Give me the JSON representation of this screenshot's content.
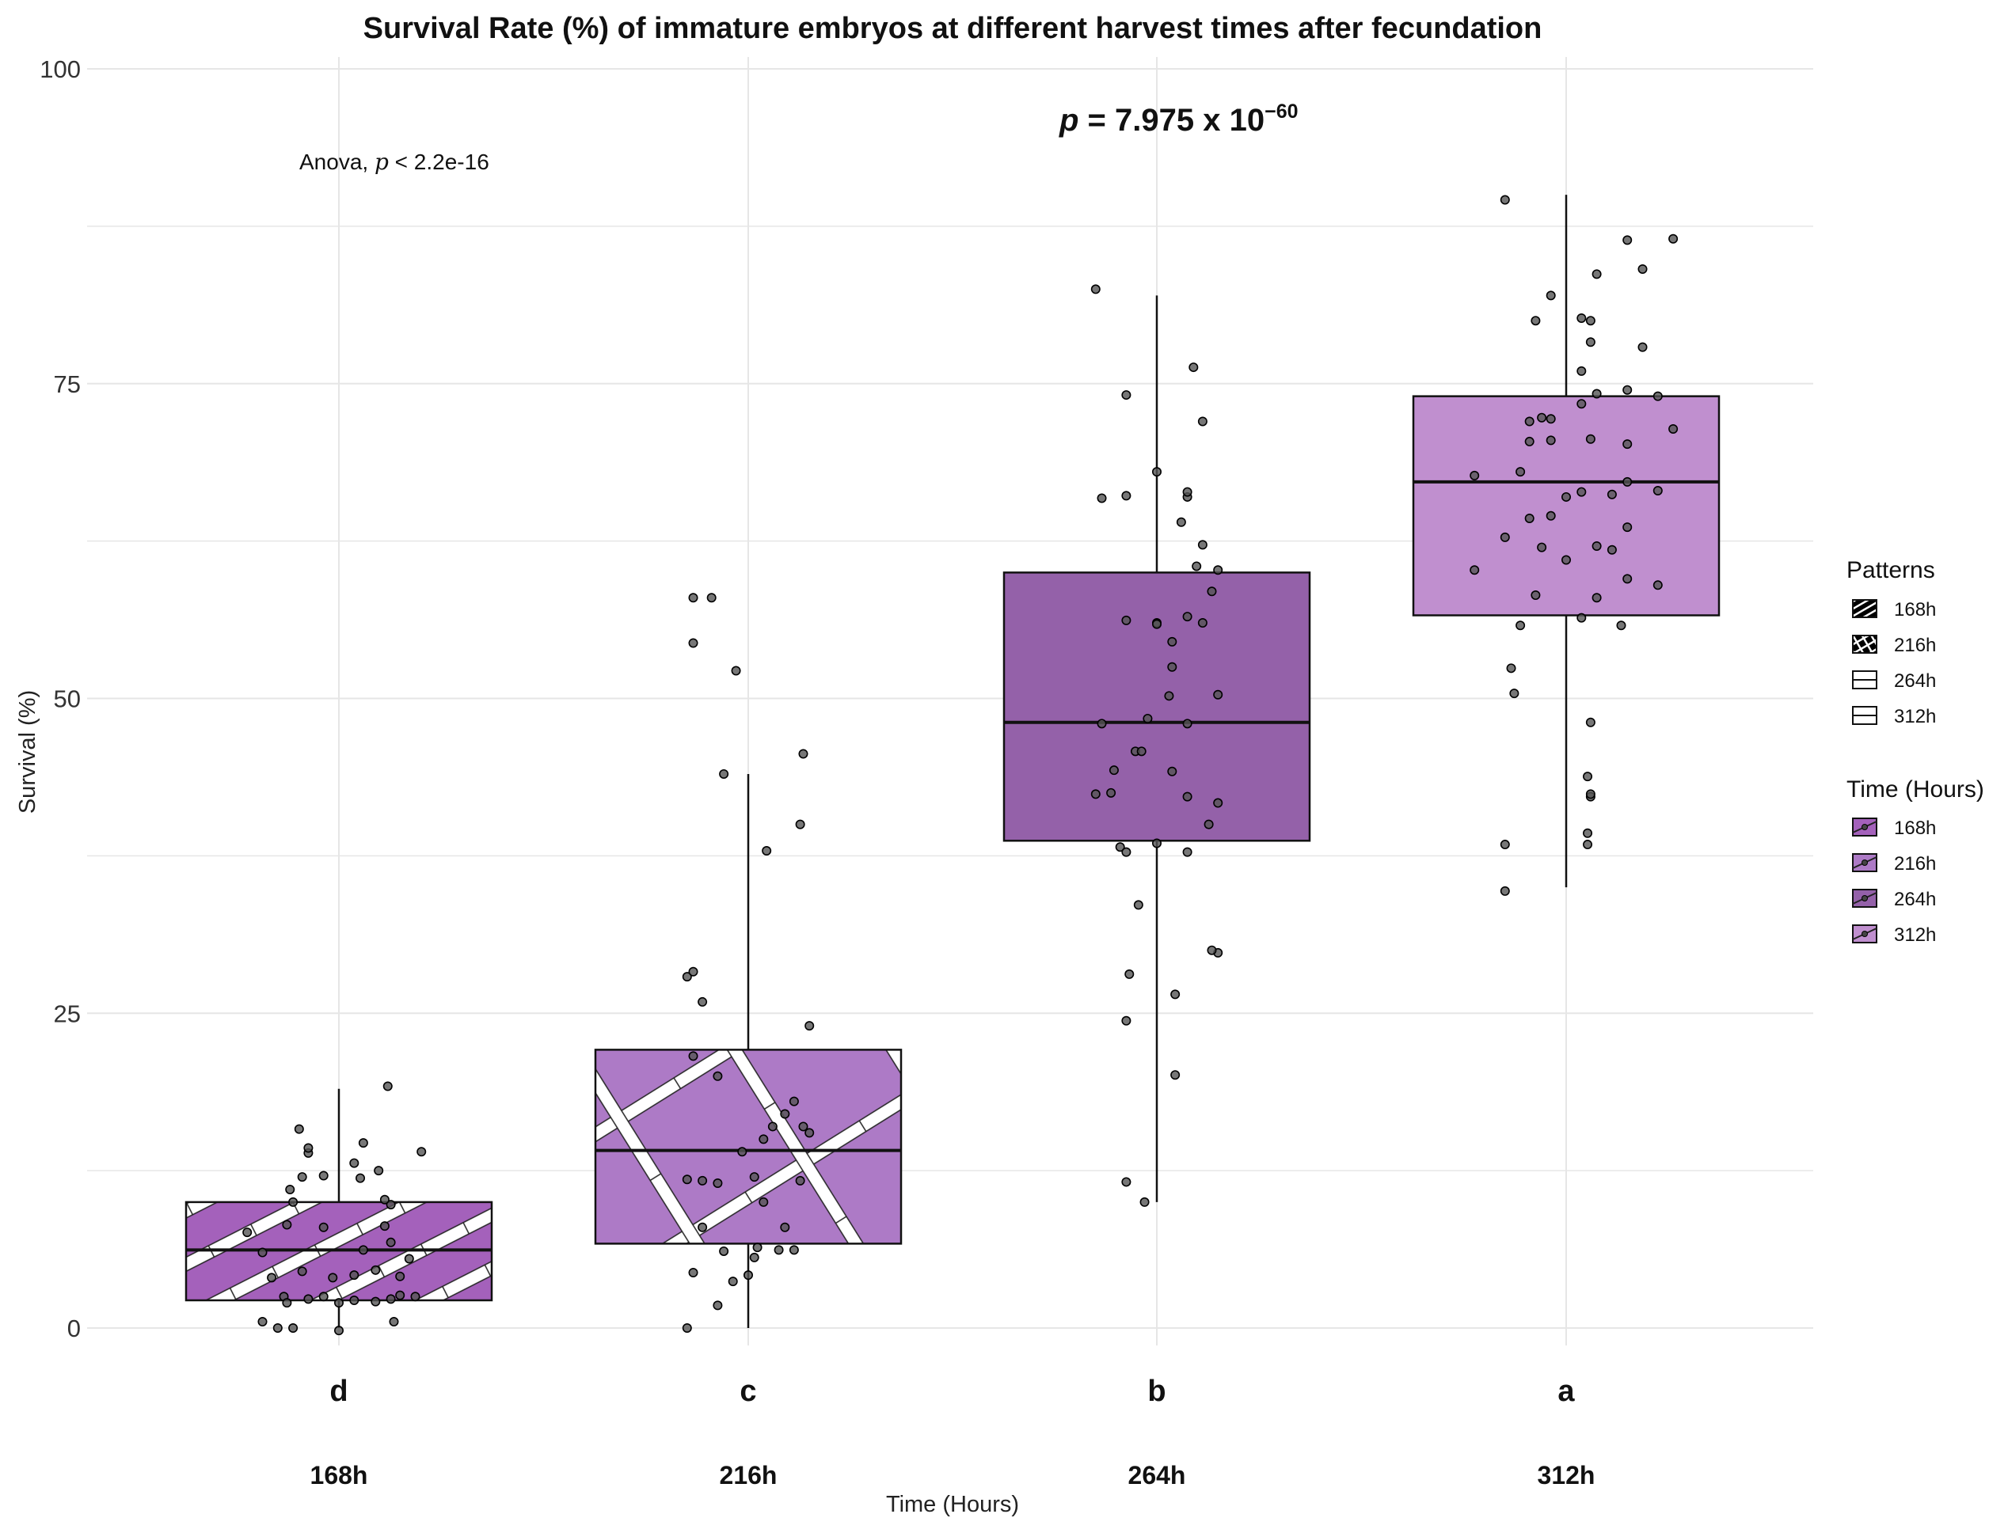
{
  "chart_data": {
    "type": "box",
    "title": "Survival Rate (%) of immature embryos at different harvest times after fecundation",
    "xlabel": "Time (Hours)",
    "ylabel": "Survival (%)",
    "ylim": [
      -5,
      100
    ],
    "yticks": [
      0,
      25,
      50,
      75,
      100
    ],
    "categories": [
      "168h",
      "216h",
      "264h",
      "312h"
    ],
    "fill_colors": [
      "#a461bb",
      "#ad7ac6",
      "#9461a9",
      "#c08fcf"
    ],
    "patterns": [
      "stripe",
      "crosshatch",
      "none",
      "none"
    ],
    "boxes": [
      {
        "category": "168h",
        "whisker_low": 0,
        "q1": 2.2,
        "median": 6.2,
        "q3": 10,
        "whisker_high": 19
      },
      {
        "category": "216h",
        "whisker_low": 0,
        "q1": 6.7,
        "median": 14.1,
        "q3": 22.1,
        "whisker_high": 44
      },
      {
        "category": "264h",
        "whisker_low": 10,
        "q1": 38.7,
        "median": 48.1,
        "q3": 60,
        "whisker_high": 82
      },
      {
        "category": "312h",
        "whisker_low": 35,
        "q1": 56.6,
        "median": 67.2,
        "q3": 74,
        "whisker_high": 90
      }
    ],
    "points": [
      [
        [
          -0.25,
          0.5
        ],
        [
          -0.2,
          0
        ],
        [
          -0.15,
          0
        ],
        [
          -0.18,
          2.5
        ],
        [
          -0.17,
          2
        ],
        [
          -0.1,
          2.3
        ],
        [
          -0.05,
          2.5
        ],
        [
          0,
          2
        ],
        [
          0.05,
          2.2
        ],
        [
          0.12,
          2.1
        ],
        [
          0.17,
          2.3
        ],
        [
          0.2,
          2.6
        ],
        [
          0.25,
          2.5
        ],
        [
          0.18,
          0.5
        ],
        [
          0,
          -0.2
        ],
        [
          -0.22,
          4
        ],
        [
          -0.12,
          4.5
        ],
        [
          -0.02,
          4
        ],
        [
          0.05,
          4.2
        ],
        [
          0.12,
          4.6
        ],
        [
          0.2,
          4.1
        ],
        [
          0.23,
          5.5
        ],
        [
          -0.25,
          6
        ],
        [
          0.08,
          6.2
        ],
        [
          0.17,
          6.8
        ],
        [
          -0.3,
          7.6
        ],
        [
          0.15,
          8.1
        ],
        [
          -0.05,
          8
        ],
        [
          -0.17,
          8.2
        ],
        [
          0.17,
          9.8
        ],
        [
          0.15,
          10.2
        ],
        [
          -0.15,
          10
        ],
        [
          -0.16,
          11
        ],
        [
          -0.12,
          12
        ],
        [
          -0.05,
          12.1
        ],
        [
          0.07,
          11.9
        ],
        [
          0.13,
          12.5
        ],
        [
          0.05,
          13.1
        ],
        [
          -0.1,
          13.9
        ],
        [
          -0.1,
          14.3
        ],
        [
          0.08,
          14.7
        ],
        [
          -0.13,
          15.8
        ],
        [
          0.16,
          19.2
        ],
        [
          0.27,
          14
        ]
      ],
      [
        [
          -0.2,
          0
        ],
        [
          -0.1,
          1.8
        ],
        [
          -0.05,
          3.7
        ],
        [
          0,
          4.2
        ],
        [
          0.02,
          5.6
        ],
        [
          0.1,
          6.2
        ],
        [
          0.15,
          6.2
        ],
        [
          -0.18,
          4.4
        ],
        [
          -0.08,
          6.1
        ],
        [
          0.03,
          6.4
        ],
        [
          -0.15,
          8
        ],
        [
          0.12,
          8
        ],
        [
          -0.2,
          11.8
        ],
        [
          -0.15,
          11.7
        ],
        [
          -0.1,
          11.5
        ],
        [
          -0.02,
          14
        ],
        [
          0.05,
          15
        ],
        [
          0.08,
          16
        ],
        [
          0.12,
          17
        ],
        [
          0.15,
          18
        ],
        [
          0.18,
          16
        ],
        [
          0.2,
          15.5
        ],
        [
          0.05,
          10
        ],
        [
          0.02,
          12
        ],
        [
          0.17,
          11.7
        ],
        [
          -0.18,
          21.6
        ],
        [
          -0.1,
          20
        ],
        [
          0.2,
          24
        ],
        [
          -0.2,
          27.9
        ],
        [
          -0.18,
          28.3
        ],
        [
          -0.15,
          25.9
        ],
        [
          0.06,
          37.9
        ],
        [
          0.17,
          40
        ],
        [
          0.18,
          45.6
        ],
        [
          -0.08,
          44
        ],
        [
          -0.04,
          52.2
        ],
        [
          -0.18,
          54.4
        ],
        [
          -0.18,
          58
        ],
        [
          -0.12,
          58
        ]
      ],
      [
        [
          -0.1,
          11.6
        ],
        [
          -0.04,
          10
        ],
        [
          -0.1,
          24.4
        ],
        [
          -0.09,
          28.1
        ],
        [
          -0.06,
          33.6
        ],
        [
          0.06,
          20.1
        ],
        [
          0.06,
          26.5
        ],
        [
          0.2,
          29.8
        ],
        [
          0.18,
          30
        ],
        [
          -0.2,
          42.4
        ],
        [
          -0.15,
          42.5
        ],
        [
          -0.12,
          38.2
        ],
        [
          -0.1,
          37.8
        ],
        [
          0,
          38.5
        ],
        [
          0.1,
          37.8
        ],
        [
          0.17,
          40
        ],
        [
          0.2,
          41.7
        ],
        [
          -0.14,
          44.3
        ],
        [
          -0.07,
          45.8
        ],
        [
          -0.05,
          45.8
        ],
        [
          0.05,
          44.2
        ],
        [
          0.1,
          42.2
        ],
        [
          -0.18,
          48
        ],
        [
          -0.03,
          48.4
        ],
        [
          0.04,
          50.2
        ],
        [
          0.1,
          48
        ],
        [
          0.2,
          50.3
        ],
        [
          0.05,
          52.5
        ],
        [
          0.05,
          54.5
        ],
        [
          -0.1,
          56.2
        ],
        [
          0,
          56
        ],
        [
          0.1,
          56.5
        ],
        [
          0.15,
          56
        ],
        [
          0.18,
          58.5
        ],
        [
          0.13,
          60.5
        ],
        [
          0.15,
          62.2
        ],
        [
          0.2,
          60.2
        ],
        [
          0,
          55.9
        ],
        [
          -0.18,
          65.9
        ],
        [
          -0.1,
          66.1
        ],
        [
          0,
          68
        ],
        [
          0.08,
          64
        ],
        [
          0.1,
          66
        ],
        [
          0.1,
          66.4
        ],
        [
          0.15,
          72
        ],
        [
          -0.1,
          74.1
        ],
        [
          0.12,
          76.3
        ],
        [
          -0.2,
          82.5
        ]
      ],
      [
        [
          -0.2,
          34.7
        ],
        [
          -0.2,
          38.4
        ],
        [
          0.07,
          39.3
        ],
        [
          0.08,
          42.2
        ],
        [
          0.08,
          42.4
        ],
        [
          0.07,
          43.8
        ],
        [
          0.08,
          48.1
        ],
        [
          0.07,
          38.4
        ],
        [
          -0.17,
          50.4
        ],
        [
          -0.18,
          52.4
        ],
        [
          -0.15,
          55.8
        ],
        [
          0.05,
          56.4
        ],
        [
          0.18,
          55.8
        ],
        [
          -0.1,
          58.2
        ],
        [
          0.1,
          58
        ],
        [
          0.3,
          59
        ],
        [
          0.2,
          59.5
        ],
        [
          -0.3,
          60.2
        ],
        [
          -0.2,
          62.8
        ],
        [
          -0.08,
          62
        ],
        [
          0,
          61
        ],
        [
          0.1,
          62.1
        ],
        [
          0.15,
          61.8
        ],
        [
          0.2,
          63.6
        ],
        [
          -0.12,
          64.3
        ],
        [
          -0.05,
          64.5
        ],
        [
          0,
          66
        ],
        [
          0.05,
          66.4
        ],
        [
          0.15,
          66.2
        ],
        [
          0.2,
          67.2
        ],
        [
          0.3,
          66.5
        ],
        [
          -0.3,
          67.7
        ],
        [
          -0.15,
          68
        ],
        [
          -0.12,
          70.4
        ],
        [
          -0.05,
          70.5
        ],
        [
          0.08,
          70.6
        ],
        [
          0.2,
          70.2
        ],
        [
          0.35,
          71.4
        ],
        [
          -0.12,
          72
        ],
        [
          -0.08,
          72.3
        ],
        [
          -0.05,
          72.2
        ],
        [
          0.05,
          73.4
        ],
        [
          0.1,
          74.2
        ],
        [
          0.2,
          74.5
        ],
        [
          0.3,
          74
        ],
        [
          0.05,
          76
        ],
        [
          0.08,
          78.3
        ],
        [
          0.25,
          77.9
        ],
        [
          -0.1,
          80
        ],
        [
          -0.05,
          82
        ],
        [
          0.08,
          80
        ],
        [
          0.05,
          80.2
        ],
        [
          0.1,
          83.7
        ],
        [
          0.25,
          84.1
        ],
        [
          0.35,
          86.5
        ],
        [
          0.2,
          86.4
        ],
        [
          -0.2,
          89.6
        ]
      ]
    ],
    "group_letters": [
      "d",
      "c",
      "b",
      "a"
    ],
    "annotations": {
      "anova_prefix": "Anova, ",
      "anova_p": "p",
      "anova_suffix": " < 2.2e-16",
      "p_symbol": "p",
      "p_eq": " = 7.975 x 10",
      "p_exp": "−60"
    },
    "legends": [
      {
        "title": "Patterns",
        "items": [
          "168h",
          "216h",
          "264h",
          "312h"
        ]
      },
      {
        "title": "Time (Hours)",
        "items": [
          "168h",
          "216h",
          "264h",
          "312h"
        ]
      }
    ]
  }
}
